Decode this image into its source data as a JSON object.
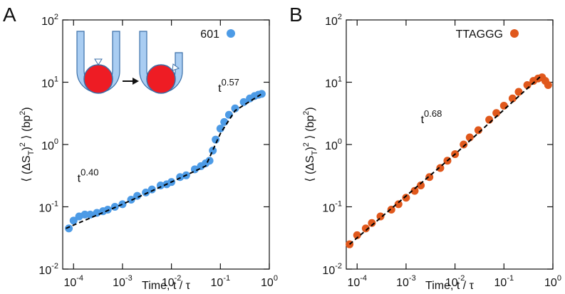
{
  "chart_data": [
    {
      "type": "scatter",
      "panel_label": "A",
      "xlabel": "Time, t / τ",
      "ylabel_parts": [
        {
          "text": "⟨ (ΔS"
        },
        {
          "text": "T",
          "sub": true
        },
        {
          "text": ")"
        },
        {
          "text": "2",
          "sup": true
        },
        {
          "text": " ⟩ (bp"
        },
        {
          "text": "2",
          "sup": true
        },
        {
          "text": ")"
        }
      ],
      "log_x": true,
      "log_y": true,
      "legend": "top-right",
      "xlim": [
        6e-05,
        1
      ],
      "ylim": [
        0.01,
        100
      ],
      "xticks": [
        {
          "value": 0.0001,
          "label": "10",
          "exponent": "-4"
        },
        {
          "value": 0.001,
          "label": "10",
          "exponent": "-3"
        },
        {
          "value": 0.01,
          "label": "10",
          "exponent": "-2"
        },
        {
          "value": 0.1,
          "label": "10",
          "exponent": "-1"
        },
        {
          "value": 1,
          "label": "10",
          "exponent": "0"
        }
      ],
      "yticks": [
        {
          "value": 0.01,
          "label": "10",
          "exponent": "-2"
        },
        {
          "value": 0.1,
          "label": "10",
          "exponent": "-1"
        },
        {
          "value": 1,
          "label": "10",
          "exponent": "0"
        },
        {
          "value": 10,
          "label": "10",
          "exponent": "1"
        },
        {
          "value": 100,
          "label": "10",
          "exponent": "2"
        }
      ],
      "series": [
        {
          "name": "601",
          "color": "#4d9be6",
          "x": [
            8e-05,
            0.0001,
            0.00013,
            0.00017,
            0.00022,
            0.0003,
            0.0004,
            0.0005,
            0.0007,
            0.001,
            0.0015,
            0.002,
            0.003,
            0.004,
            0.006,
            0.008,
            0.01,
            0.015,
            0.02,
            0.03,
            0.04,
            0.05,
            0.06,
            0.07,
            0.08,
            0.1,
            0.12,
            0.15,
            0.2,
            0.3,
            0.4,
            0.5,
            0.6,
            0.7
          ],
          "values": [
            0.045,
            0.06,
            0.07,
            0.075,
            0.075,
            0.08,
            0.085,
            0.09,
            0.1,
            0.11,
            0.13,
            0.15,
            0.17,
            0.19,
            0.22,
            0.23,
            0.25,
            0.3,
            0.32,
            0.4,
            0.45,
            0.5,
            0.55,
            0.8,
            1.2,
            1.8,
            2.3,
            3,
            3.8,
            4.8,
            5.5,
            6,
            6.3,
            6.5
          ]
        }
      ],
      "fit": {
        "color": "#000000",
        "x": [
          7e-05,
          0.001,
          0.01,
          0.05,
          0.1,
          0.2,
          0.7
        ],
        "values": [
          0.045,
          0.11,
          0.25,
          0.45,
          1.5,
          3.5,
          6.5
        ]
      },
      "annotations": [
        {
          "text": "t",
          "sup": "0.40",
          "x": 0.00012,
          "y": 0.25
        },
        {
          "text": "t",
          "sup": "0.57",
          "x": 0.09,
          "y": 7
        }
      ]
    },
    {
      "type": "scatter",
      "panel_label": "B",
      "xlabel": "Time, t / τ",
      "ylabel_parts": [
        {
          "text": "⟨ (ΔS"
        },
        {
          "text": "T",
          "sub": true
        },
        {
          "text": ")"
        },
        {
          "text": "2",
          "sup": true
        },
        {
          "text": " ⟩ (bp"
        },
        {
          "text": "2",
          "sup": true
        },
        {
          "text": ")"
        }
      ],
      "log_x": true,
      "log_y": true,
      "legend": "top-right",
      "xlim": [
        6e-05,
        1
      ],
      "ylim": [
        0.01,
        100
      ],
      "xticks": [
        {
          "value": 0.0001,
          "label": "10",
          "exponent": "-4"
        },
        {
          "value": 0.001,
          "label": "10",
          "exponent": "-3"
        },
        {
          "value": 0.01,
          "label": "10",
          "exponent": "-2"
        },
        {
          "value": 0.1,
          "label": "10",
          "exponent": "-1"
        },
        {
          "value": 1,
          "label": "10",
          "exponent": "0"
        }
      ],
      "yticks": [
        {
          "value": 0.01,
          "label": "10",
          "exponent": "-2"
        },
        {
          "value": 0.1,
          "label": "10",
          "exponent": "-1"
        },
        {
          "value": 1,
          "label": "10",
          "exponent": "0"
        },
        {
          "value": 10,
          "label": "10",
          "exponent": "1"
        },
        {
          "value": 100,
          "label": "10",
          "exponent": "2"
        }
      ],
      "series": [
        {
          "name": "TTAGGG",
          "color": "#e0581c",
          "x": [
            7e-05,
            0.0001,
            0.00015,
            0.0002,
            0.0003,
            0.0005,
            0.0007,
            0.001,
            0.0015,
            0.002,
            0.003,
            0.005,
            0.007,
            0.01,
            0.015,
            0.02,
            0.03,
            0.05,
            0.07,
            0.1,
            0.15,
            0.2,
            0.3,
            0.4,
            0.5,
            0.6,
            0.7,
            0.8
          ],
          "values": [
            0.025,
            0.035,
            0.045,
            0.055,
            0.07,
            0.09,
            0.11,
            0.14,
            0.18,
            0.22,
            0.3,
            0.42,
            0.55,
            0.7,
            1.0,
            1.3,
            1.7,
            2.5,
            3.2,
            4.2,
            5.5,
            7,
            9,
            10.5,
            11.5,
            12,
            10.5,
            9
          ]
        }
      ],
      "fit": {
        "color": "#000000",
        "x": [
          7e-05,
          0.01,
          0.6
        ],
        "values": [
          0.025,
          0.7,
          13
        ]
      },
      "annotations": [
        {
          "text": "t",
          "sup": "0.68",
          "x": 0.002,
          "y": 2.2
        }
      ]
    }
  ]
}
